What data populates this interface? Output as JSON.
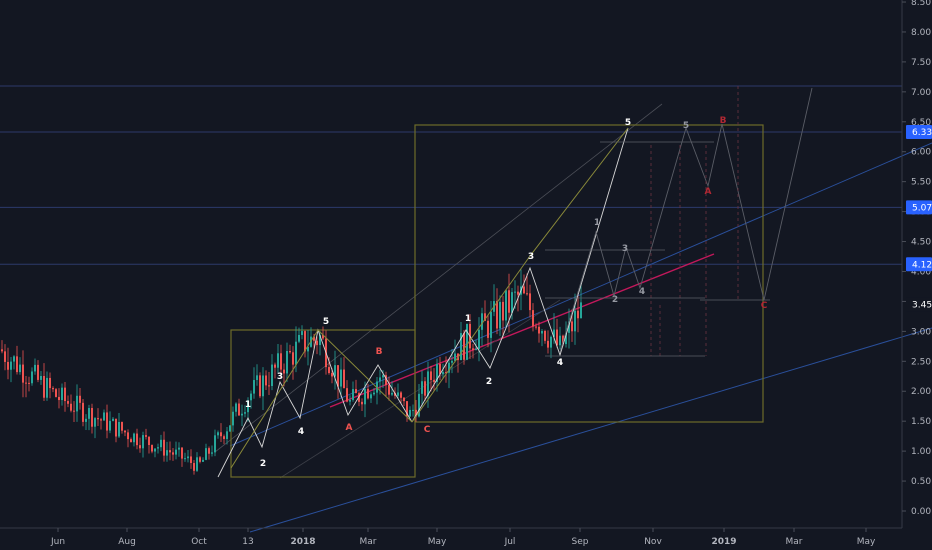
{
  "chart_data": {
    "type": "candlestick",
    "title": "",
    "xlabel": "",
    "ylabel": "",
    "ylim": [
      -0.2,
      8.6
    ],
    "grid": false,
    "y_ticks": [
      "0.00",
      "0.50",
      "1.00",
      "1.50",
      "2.00",
      "2.50",
      "3.00",
      "3.50",
      "4.00",
      "4.50",
      "5.00",
      "5.50",
      "6.00",
      "6.50",
      "7.00",
      "7.50",
      "8.00",
      "8.50"
    ],
    "x_ticks": [
      "Jun",
      "Aug",
      "Oct",
      "13",
      "2018",
      "Mar",
      "May",
      "Jul",
      "Sep",
      "Nov",
      "2019",
      "Mar",
      "May"
    ],
    "price_levels": [
      {
        "label": "6.33",
        "value": 6.33,
        "color": "#2962ff"
      },
      {
        "label": "5.07",
        "value": 5.07,
        "color": "#2962ff"
      },
      {
        "label": "4.12",
        "value": 4.12,
        "color": "#2962ff"
      },
      {
        "label": "3.45",
        "value": 3.45,
        "color": "#131722"
      }
    ],
    "price_series": {
      "x": [
        "2017-04",
        "2017-05",
        "2017-06",
        "2017-07",
        "2017-08",
        "2017-09",
        "2017-10",
        "2017-11",
        "2017-12",
        "2018-01",
        "2018-02",
        "2018-03",
        "2018-04",
        "2018-05",
        "2018-06",
        "2018-07",
        "2018-08",
        "2018-09"
      ],
      "y": [
        2.7,
        2.3,
        1.9,
        1.6,
        1.3,
        1.05,
        0.75,
        1.9,
        2.8,
        2.9,
        1.8,
        2.25,
        1.6,
        2.5,
        3.0,
        3.6,
        2.7,
        3.35
      ]
    },
    "wave_labels": [
      {
        "text": "1",
        "color": "#ffffff"
      },
      {
        "text": "2",
        "color": "#ffffff"
      },
      {
        "text": "3",
        "color": "#ffffff"
      },
      {
        "text": "4",
        "color": "#ffffff"
      },
      {
        "text": "5",
        "color": "#ffffff"
      },
      {
        "text": "A",
        "color": "#ef5350"
      },
      {
        "text": "B",
        "color": "#ef5350"
      },
      {
        "text": "C",
        "color": "#ef5350"
      },
      {
        "text": "1",
        "color": "#ffffff"
      },
      {
        "text": "2",
        "color": "#ffffff"
      },
      {
        "text": "3",
        "color": "#ffffff"
      },
      {
        "text": "4",
        "color": "#ffffff"
      },
      {
        "text": "5",
        "color": "#ffffff"
      },
      {
        "text": "1",
        "color": "#9598a1"
      },
      {
        "text": "2",
        "color": "#9598a1"
      },
      {
        "text": "3",
        "color": "#9598a1"
      },
      {
        "text": "4",
        "color": "#9598a1"
      },
      {
        "text": "5",
        "color": "#9598a1"
      },
      {
        "text": "A",
        "color": "#b22833"
      },
      {
        "text": "B",
        "color": "#b22833"
      },
      {
        "text": "C",
        "color": "#b22833"
      }
    ]
  },
  "colors": {
    "background": "#131722",
    "up": "#26a69a",
    "down": "#ef5350",
    "box": "#6d6b2a",
    "trend": "#c2185b",
    "channel": "#2a4f9a"
  }
}
